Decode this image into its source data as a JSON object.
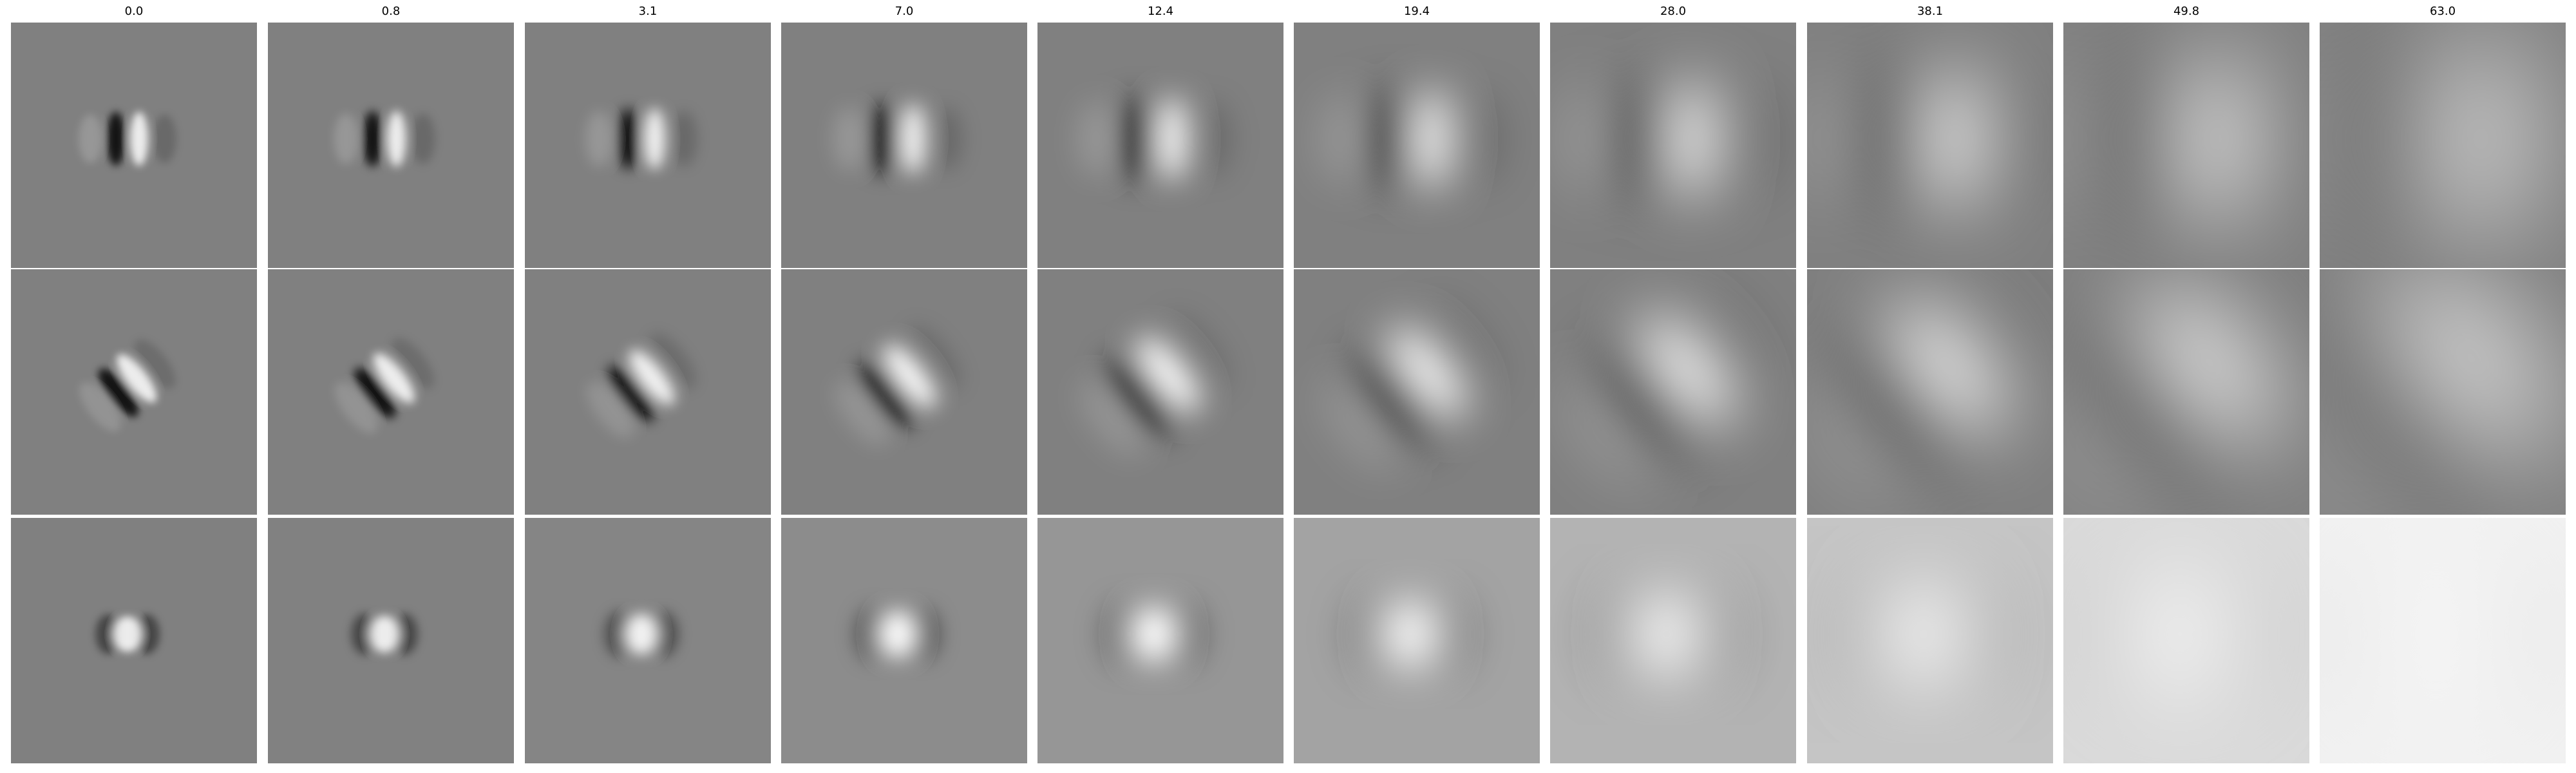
{
  "figure": {
    "columns": [
      {
        "title": "0.0",
        "sigma": 0.0
      },
      {
        "title": "0.8",
        "sigma": 0.8
      },
      {
        "title": "3.1",
        "sigma": 3.1
      },
      {
        "title": "7.0",
        "sigma": 7.0
      },
      {
        "title": "12.4",
        "sigma": 12.4
      },
      {
        "title": "19.4",
        "sigma": 19.4
      },
      {
        "title": "28.0",
        "sigma": 28.0
      },
      {
        "title": "38.1",
        "sigma": 38.1
      },
      {
        "title": "49.8",
        "sigma": 49.8
      },
      {
        "title": "63.0",
        "sigma": 63.0
      }
    ],
    "rows": [
      {
        "id": "vertical-edge-filter",
        "pattern": "vertical-dark-light-pair"
      },
      {
        "id": "diagonal-edge-filter",
        "pattern": "diagonal-dark-light-pair"
      },
      {
        "id": "center-blob-filter",
        "pattern": "bright-center-dark-flanks"
      }
    ],
    "colors": {
      "background": "#ffffff",
      "neutral_gray": "#808080",
      "dark": "#000000",
      "light": "#ffffff"
    }
  }
}
